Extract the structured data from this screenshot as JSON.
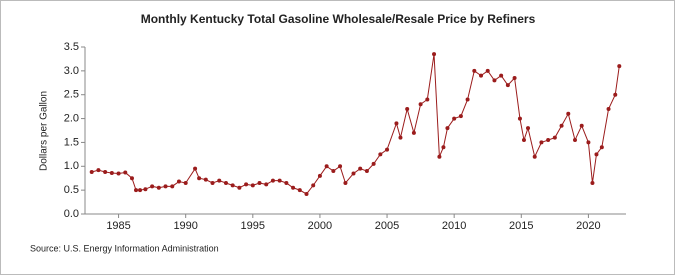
{
  "chart_data": {
    "type": "line",
    "title": "Monthly Kentucky Total Gasoline Wholesale/Resale Price by Refiners",
    "y_label": "Dollars per Gallon",
    "source": "Source: U.S. Energy Information Administration",
    "x": [
      1983.0,
      1983.5,
      1984.0,
      1984.5,
      1985.0,
      1985.5,
      1986.0,
      1986.3,
      1986.6,
      1987.0,
      1987.5,
      1988.0,
      1988.5,
      1989.0,
      1989.5,
      1990.0,
      1990.7,
      1991.0,
      1991.5,
      1992.0,
      1992.5,
      1993.0,
      1993.5,
      1994.0,
      1994.5,
      1995.0,
      1995.5,
      1996.0,
      1996.5,
      1997.0,
      1997.5,
      1998.0,
      1998.5,
      1999.0,
      1999.5,
      2000.0,
      2000.5,
      2001.0,
      2001.5,
      2001.9,
      2002.5,
      2003.0,
      2003.5,
      2004.0,
      2004.5,
      2005.0,
      2005.7,
      2006.0,
      2006.5,
      2007.0,
      2007.5,
      2008.0,
      2008.5,
      2008.9,
      2009.2,
      2009.5,
      2010.0,
      2010.5,
      2011.0,
      2011.5,
      2012.0,
      2012.5,
      2013.0,
      2013.5,
      2014.0,
      2014.5,
      2014.9,
      2015.2,
      2015.5,
      2016.0,
      2016.5,
      2017.0,
      2017.5,
      2018.0,
      2018.5,
      2019.0,
      2019.5,
      2020.0,
      2020.3,
      2020.6,
      2021.0,
      2021.5,
      2022.0,
      2022.3
    ],
    "series": [
      {
        "name": "Kentucky Total Gasoline Wholesale/Resale Price by Refiners",
        "color": "#9b1c1c",
        "values": [
          0.88,
          0.92,
          0.88,
          0.86,
          0.85,
          0.87,
          0.75,
          0.5,
          0.5,
          0.52,
          0.58,
          0.55,
          0.58,
          0.58,
          0.68,
          0.65,
          0.95,
          0.75,
          0.72,
          0.65,
          0.7,
          0.65,
          0.6,
          0.55,
          0.62,
          0.6,
          0.65,
          0.62,
          0.7,
          0.7,
          0.65,
          0.55,
          0.5,
          0.42,
          0.6,
          0.8,
          1.0,
          0.9,
          1.0,
          0.65,
          0.85,
          0.95,
          0.9,
          1.05,
          1.25,
          1.35,
          1.9,
          1.6,
          2.2,
          1.7,
          2.3,
          2.4,
          3.35,
          1.2,
          1.4,
          1.8,
          2.0,
          2.05,
          2.4,
          3.0,
          2.9,
          3.0,
          2.8,
          2.9,
          2.7,
          2.85,
          2.0,
          1.55,
          1.8,
          1.2,
          1.5,
          1.55,
          1.6,
          1.85,
          2.1,
          1.55,
          1.85,
          1.5,
          0.65,
          1.25,
          1.4,
          2.2,
          2.5,
          3.1
        ]
      }
    ],
    "xlim": [
      1982.5,
      2022.8
    ],
    "ylim": [
      0,
      3.5
    ],
    "xticks": [
      1985,
      1990,
      1995,
      2000,
      2005,
      2010,
      2015,
      2020
    ],
    "yticks": [
      {
        "value": 0,
        "label": "0.0"
      },
      {
        "value": 0.5,
        "label": "0.5"
      },
      {
        "value": 1,
        "label": "1.0"
      },
      {
        "value": 1.5,
        "label": "1.5"
      },
      {
        "value": 2,
        "label": "2.0"
      },
      {
        "value": 2.5,
        "label": "2.5"
      },
      {
        "value": 3,
        "label": "3.0"
      },
      {
        "value": 3.5,
        "label": "3.5"
      }
    ],
    "grid": false
  }
}
